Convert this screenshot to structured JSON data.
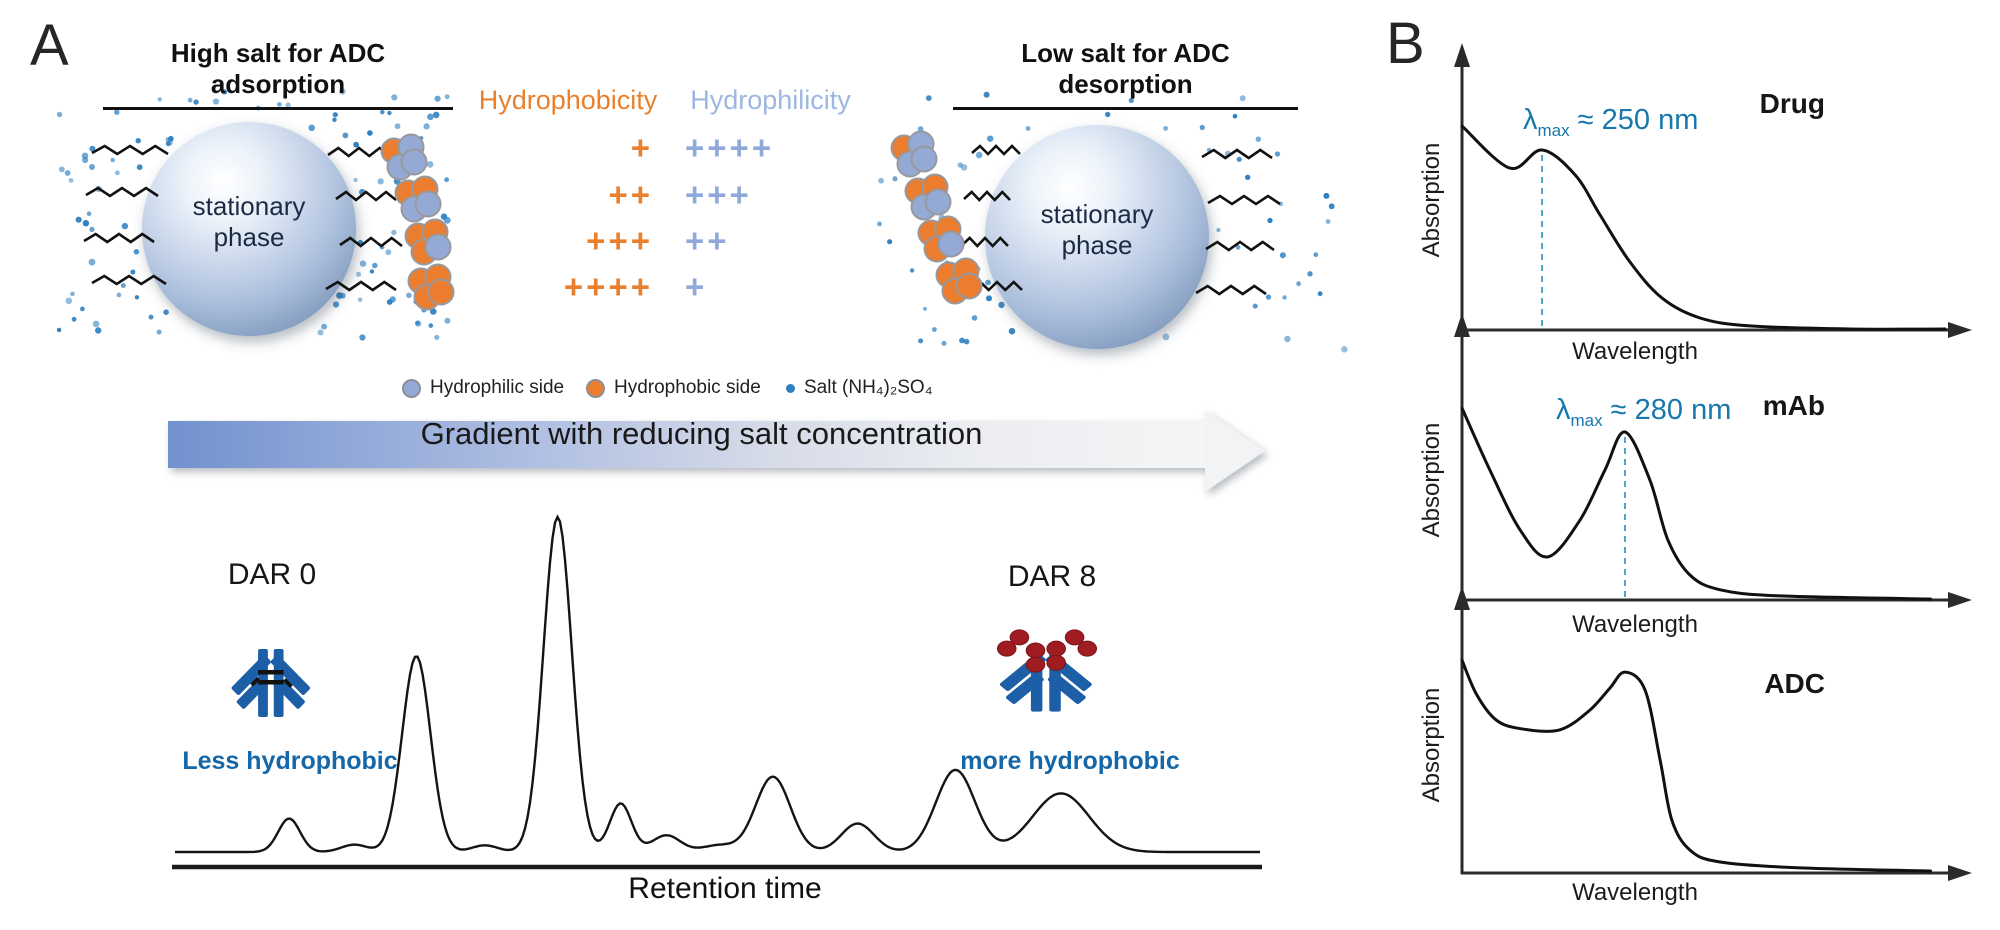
{
  "colors": {
    "orange": "#EC7D2E",
    "hydrophilic_blue": "#94AAD5",
    "salt_blue": "#2E7FC0",
    "antibody_blue": "#1D5FA6",
    "drug_red": "#9F1C22",
    "lambda_teal": "#1878AE",
    "caption_blue": "#1467A8"
  },
  "panel_a": {
    "label": "A",
    "adsorption_title": "High salt for ADC adsorption",
    "desorption_title": "Low salt for ADC desorption",
    "sphere_line1": "stationary",
    "sphere_line2": "phase",
    "hydrophobicity_label": "Hydrophobicity",
    "hydrophilicity_label": "Hydrophilicity",
    "scale_rows": [
      {
        "phobic": "+",
        "philic": "++++"
      },
      {
        "phobic": "++",
        "philic": "+++"
      },
      {
        "phobic": "+++",
        "philic": "++"
      },
      {
        "phobic": "++++",
        "philic": "+"
      }
    ],
    "legend": [
      {
        "label": "Hydrophilic side"
      },
      {
        "label": "Hydrophobic side"
      },
      {
        "label": "Salt (NH₄)₂SO₄"
      }
    ],
    "gradient_arrow_label": "Gradient with reducing salt concentration",
    "adsorption_clusters": [
      [
        "orange",
        "blue",
        "blue",
        "blue"
      ],
      [
        "orange",
        "orange",
        "blue",
        "blue"
      ],
      [
        "orange",
        "orange",
        "orange",
        "blue"
      ],
      [
        "orange",
        "orange",
        "orange",
        "orange"
      ]
    ],
    "desorption_clusters": [
      [
        "orange",
        "blue",
        "blue",
        "blue"
      ],
      [
        "orange",
        "orange",
        "blue",
        "blue"
      ],
      [
        "orange",
        "orange",
        "orange",
        "blue"
      ],
      [
        "orange",
        "orange",
        "orange",
        "orange"
      ]
    ],
    "chromatogram": {
      "dar0_label": "DAR 0",
      "dar0_caption": "Less hydrophobic",
      "dar8_label": "DAR 8",
      "dar8_caption": "more hydrophobic",
      "x_label": "Retention time",
      "peaks": [
        {
          "c": 0.105,
          "h": 0.1,
          "w": 0.01
        },
        {
          "c": 0.165,
          "h": 0.022,
          "w": 0.012
        },
        {
          "c": 0.222,
          "h": 0.585,
          "w": 0.013
        },
        {
          "c": 0.285,
          "h": 0.02,
          "w": 0.012
        },
        {
          "c": 0.352,
          "h": 1.0,
          "w": 0.013
        },
        {
          "c": 0.41,
          "h": 0.145,
          "w": 0.01
        },
        {
          "c": 0.452,
          "h": 0.05,
          "w": 0.013
        },
        {
          "c": 0.5,
          "h": 0.02,
          "w": 0.015
        },
        {
          "c": 0.55,
          "h": 0.225,
          "w": 0.016
        },
        {
          "c": 0.628,
          "h": 0.085,
          "w": 0.015
        },
        {
          "c": 0.718,
          "h": 0.245,
          "w": 0.018
        },
        {
          "c": 0.815,
          "h": 0.175,
          "w": 0.026
        }
      ]
    }
  },
  "panel_b": {
    "label": "B",
    "y_axis_label": "Absorption",
    "x_axis_label": "Wavelength",
    "plots": [
      {
        "title": "Drug",
        "lambda": {
          "symbol": "λ",
          "subscript": "max",
          "value": " ≈ 250 nm"
        },
        "lambda_x": 0.164,
        "lambda_peak_y": 0.706,
        "curve": [
          [
            0,
            0.8
          ],
          [
            0.098,
            0.635
          ],
          [
            0.164,
            0.706
          ],
          [
            0.232,
            0.608
          ],
          [
            0.283,
            0.451
          ],
          [
            0.344,
            0.267
          ],
          [
            0.41,
            0.125
          ],
          [
            0.488,
            0.047
          ],
          [
            0.59,
            0.016
          ],
          [
            0.795,
            0.004
          ],
          [
            0.99,
            0.004
          ]
        ]
      },
      {
        "title": "mAb",
        "lambda": {
          "symbol": "λ",
          "subscript": "max",
          "value": " ≈ 280 nm"
        },
        "lambda_x": 0.334,
        "lambda_peak_y": 0.659,
        "curve": [
          [
            0,
            0.753
          ],
          [
            0.057,
            0.51
          ],
          [
            0.119,
            0.275
          ],
          [
            0.176,
            0.169
          ],
          [
            0.242,
            0.314
          ],
          [
            0.293,
            0.51
          ],
          [
            0.334,
            0.659
          ],
          [
            0.385,
            0.47
          ],
          [
            0.422,
            0.235
          ],
          [
            0.467,
            0.098
          ],
          [
            0.529,
            0.04
          ],
          [
            0.652,
            0.016
          ],
          [
            0.96,
            0.004
          ]
        ]
      },
      {
        "title": "ADC",
        "curve": [
          [
            0,
            0.835
          ],
          [
            0.03,
            0.7
          ],
          [
            0.07,
            0.6
          ],
          [
            0.12,
            0.566
          ],
          [
            0.2,
            0.561
          ],
          [
            0.262,
            0.639
          ],
          [
            0.303,
            0.725
          ],
          [
            0.334,
            0.788
          ],
          [
            0.375,
            0.718
          ],
          [
            0.406,
            0.443
          ],
          [
            0.43,
            0.208
          ],
          [
            0.467,
            0.09
          ],
          [
            0.529,
            0.043
          ],
          [
            0.693,
            0.02
          ],
          [
            0.96,
            0.008
          ]
        ]
      }
    ]
  }
}
